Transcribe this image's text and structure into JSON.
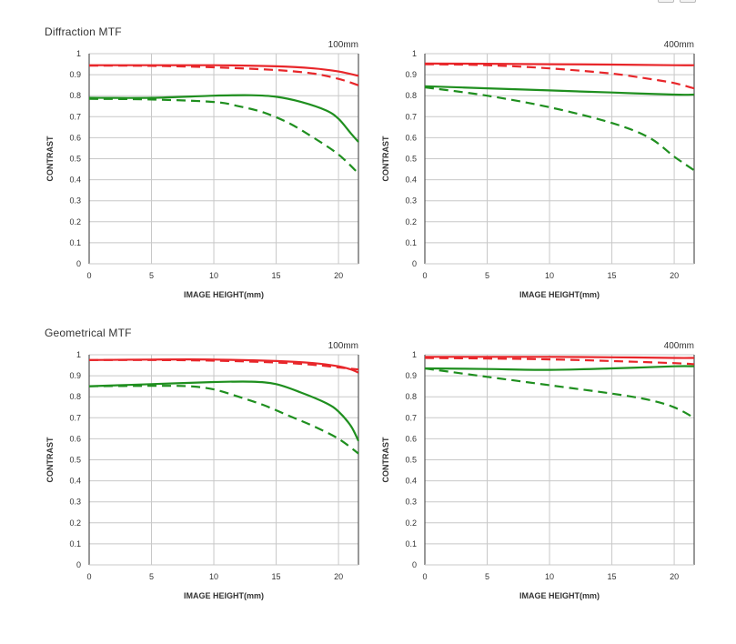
{
  "section_titles": [
    "Diffraction MTF",
    "Geometrical MTF"
  ],
  "colors": {
    "sagittal_red": "#e8262a",
    "meridional_green": "#1f8f1f",
    "grid": "#c8c8c8",
    "frame": "#555555"
  },
  "toolbar_icons": [
    "expand-icon",
    "close-icon"
  ],
  "chart_data": [
    {
      "type": "line",
      "group": "Diffraction MTF",
      "title": "100mm",
      "xlabel": "IMAGE HEIGHT(mm)",
      "ylabel": "CONTRAST",
      "xlim": [
        0,
        21.6
      ],
      "ylim": [
        0,
        1
      ],
      "xticks": [
        "0",
        "5",
        "10",
        "15",
        "20"
      ],
      "yticks": [
        "0",
        "0.1",
        "0.2",
        "0.3",
        "0.4",
        "0.5",
        "0.6",
        "0.7",
        "0.8",
        "0.9",
        "1"
      ],
      "grid": true,
      "series": [
        {
          "name": "red-solid",
          "color": "#e8262a",
          "dash": false,
          "x": [
            0,
            5,
            10,
            15,
            18,
            20,
            21.6
          ],
          "y": [
            0.945,
            0.945,
            0.945,
            0.94,
            0.93,
            0.915,
            0.895
          ]
        },
        {
          "name": "red-dashed",
          "color": "#e8262a",
          "dash": true,
          "x": [
            0,
            5,
            10,
            15,
            18,
            20,
            21.6
          ],
          "y": [
            0.943,
            0.942,
            0.935,
            0.922,
            0.905,
            0.88,
            0.85
          ]
        },
        {
          "name": "green-solid",
          "color": "#1f8f1f",
          "dash": false,
          "x": [
            0,
            5,
            10,
            13,
            15,
            17,
            19,
            20,
            21,
            21.6
          ],
          "y": [
            0.79,
            0.79,
            0.8,
            0.802,
            0.795,
            0.77,
            0.73,
            0.69,
            0.62,
            0.58
          ]
        },
        {
          "name": "green-dashed",
          "color": "#1f8f1f",
          "dash": true,
          "x": [
            0,
            5,
            10,
            12,
            14,
            16,
            18,
            20,
            21.6
          ],
          "y": [
            0.785,
            0.782,
            0.77,
            0.75,
            0.72,
            0.67,
            0.6,
            0.52,
            0.43
          ]
        }
      ]
    },
    {
      "type": "line",
      "group": "Diffraction MTF",
      "title": "400mm",
      "xlabel": "IMAGE HEIGHT(mm)",
      "ylabel": "CONTRAST",
      "xlim": [
        0,
        21.6
      ],
      "ylim": [
        0,
        1
      ],
      "xticks": [
        "0",
        "5",
        "10",
        "15",
        "20"
      ],
      "yticks": [
        "0",
        "0.1",
        "0.2",
        "0.3",
        "0.4",
        "0.5",
        "0.6",
        "0.7",
        "0.8",
        "0.9",
        "1"
      ],
      "grid": true,
      "series": [
        {
          "name": "red-solid",
          "color": "#e8262a",
          "dash": false,
          "x": [
            0,
            5,
            10,
            15,
            20,
            21.6
          ],
          "y": [
            0.953,
            0.952,
            0.95,
            0.948,
            0.945,
            0.945
          ]
        },
        {
          "name": "red-dashed",
          "color": "#e8262a",
          "dash": true,
          "x": [
            0,
            5,
            10,
            15,
            18,
            20,
            21.6
          ],
          "y": [
            0.95,
            0.945,
            0.93,
            0.905,
            0.88,
            0.86,
            0.835
          ]
        },
        {
          "name": "green-solid",
          "color": "#1f8f1f",
          "dash": false,
          "x": [
            0,
            5,
            10,
            15,
            20,
            21.6
          ],
          "y": [
            0.845,
            0.835,
            0.825,
            0.815,
            0.805,
            0.805
          ]
        },
        {
          "name": "green-dashed",
          "color": "#1f8f1f",
          "dash": true,
          "x": [
            0,
            5,
            10,
            15,
            18,
            20,
            21.6
          ],
          "y": [
            0.84,
            0.8,
            0.745,
            0.67,
            0.6,
            0.51,
            0.445
          ]
        }
      ]
    },
    {
      "type": "line",
      "group": "Geometrical MTF",
      "title": "100mm",
      "xlabel": "IMAGE HEIGHT(mm)",
      "ylabel": "CONTRAST",
      "xlim": [
        0,
        21.6
      ],
      "ylim": [
        0,
        1
      ],
      "xticks": [
        "0",
        "5",
        "10",
        "15",
        "20"
      ],
      "yticks": [
        "0",
        "0.1",
        "0.2",
        "0.3",
        "0.4",
        "0.5",
        "0.6",
        "0.7",
        "0.8",
        "0.9",
        "1"
      ],
      "grid": true,
      "series": [
        {
          "name": "red-solid",
          "color": "#e8262a",
          "dash": false,
          "x": [
            0,
            5,
            10,
            15,
            18,
            20,
            21,
            21.6
          ],
          "y": [
            0.975,
            0.977,
            0.977,
            0.97,
            0.96,
            0.945,
            0.93,
            0.915
          ]
        },
        {
          "name": "red-dashed",
          "color": "#e8262a",
          "dash": true,
          "x": [
            0,
            5,
            10,
            15,
            18,
            20,
            21.6
          ],
          "y": [
            0.975,
            0.975,
            0.972,
            0.963,
            0.952,
            0.94,
            0.93
          ]
        },
        {
          "name": "green-solid",
          "color": "#1f8f1f",
          "dash": false,
          "x": [
            0,
            5,
            10,
            13,
            15,
            17,
            19,
            20,
            21,
            21.6
          ],
          "y": [
            0.85,
            0.86,
            0.87,
            0.872,
            0.86,
            0.82,
            0.77,
            0.73,
            0.66,
            0.59
          ]
        },
        {
          "name": "green-dashed",
          "color": "#1f8f1f",
          "dash": true,
          "x": [
            0,
            5,
            8,
            10,
            12,
            14,
            16,
            18,
            20,
            21.6
          ],
          "y": [
            0.85,
            0.852,
            0.85,
            0.835,
            0.8,
            0.76,
            0.71,
            0.66,
            0.6,
            0.53
          ]
        }
      ]
    },
    {
      "type": "line",
      "group": "Geometrical MTF",
      "title": "400mm",
      "xlabel": "IMAGE HEIGHT(mm)",
      "ylabel": "CONTRAST",
      "xlim": [
        0,
        21.6
      ],
      "ylim": [
        0,
        1
      ],
      "xticks": [
        "0",
        "5",
        "10",
        "15",
        "20"
      ],
      "yticks": [
        "0",
        "0.1",
        "0.2",
        "0.3",
        "0.4",
        "0.5",
        "0.6",
        "0.7",
        "0.8",
        "0.9",
        "1"
      ],
      "grid": true,
      "series": [
        {
          "name": "red-solid",
          "color": "#e8262a",
          "dash": false,
          "x": [
            0,
            5,
            10,
            15,
            20,
            21.6
          ],
          "y": [
            0.99,
            0.99,
            0.99,
            0.988,
            0.985,
            0.985
          ]
        },
        {
          "name": "red-dashed",
          "color": "#e8262a",
          "dash": true,
          "x": [
            0,
            5,
            10,
            15,
            20,
            21.6
          ],
          "y": [
            0.985,
            0.982,
            0.978,
            0.97,
            0.96,
            0.955
          ]
        },
        {
          "name": "green-solid",
          "color": "#1f8f1f",
          "dash": false,
          "x": [
            0,
            5,
            10,
            15,
            20,
            21.6
          ],
          "y": [
            0.935,
            0.932,
            0.928,
            0.935,
            0.945,
            0.945
          ]
        },
        {
          "name": "green-dashed",
          "color": "#1f8f1f",
          "dash": true,
          "x": [
            0,
            5,
            10,
            15,
            18,
            20,
            21.6
          ],
          "y": [
            0.935,
            0.895,
            0.855,
            0.815,
            0.785,
            0.75,
            0.7
          ]
        }
      ]
    }
  ]
}
